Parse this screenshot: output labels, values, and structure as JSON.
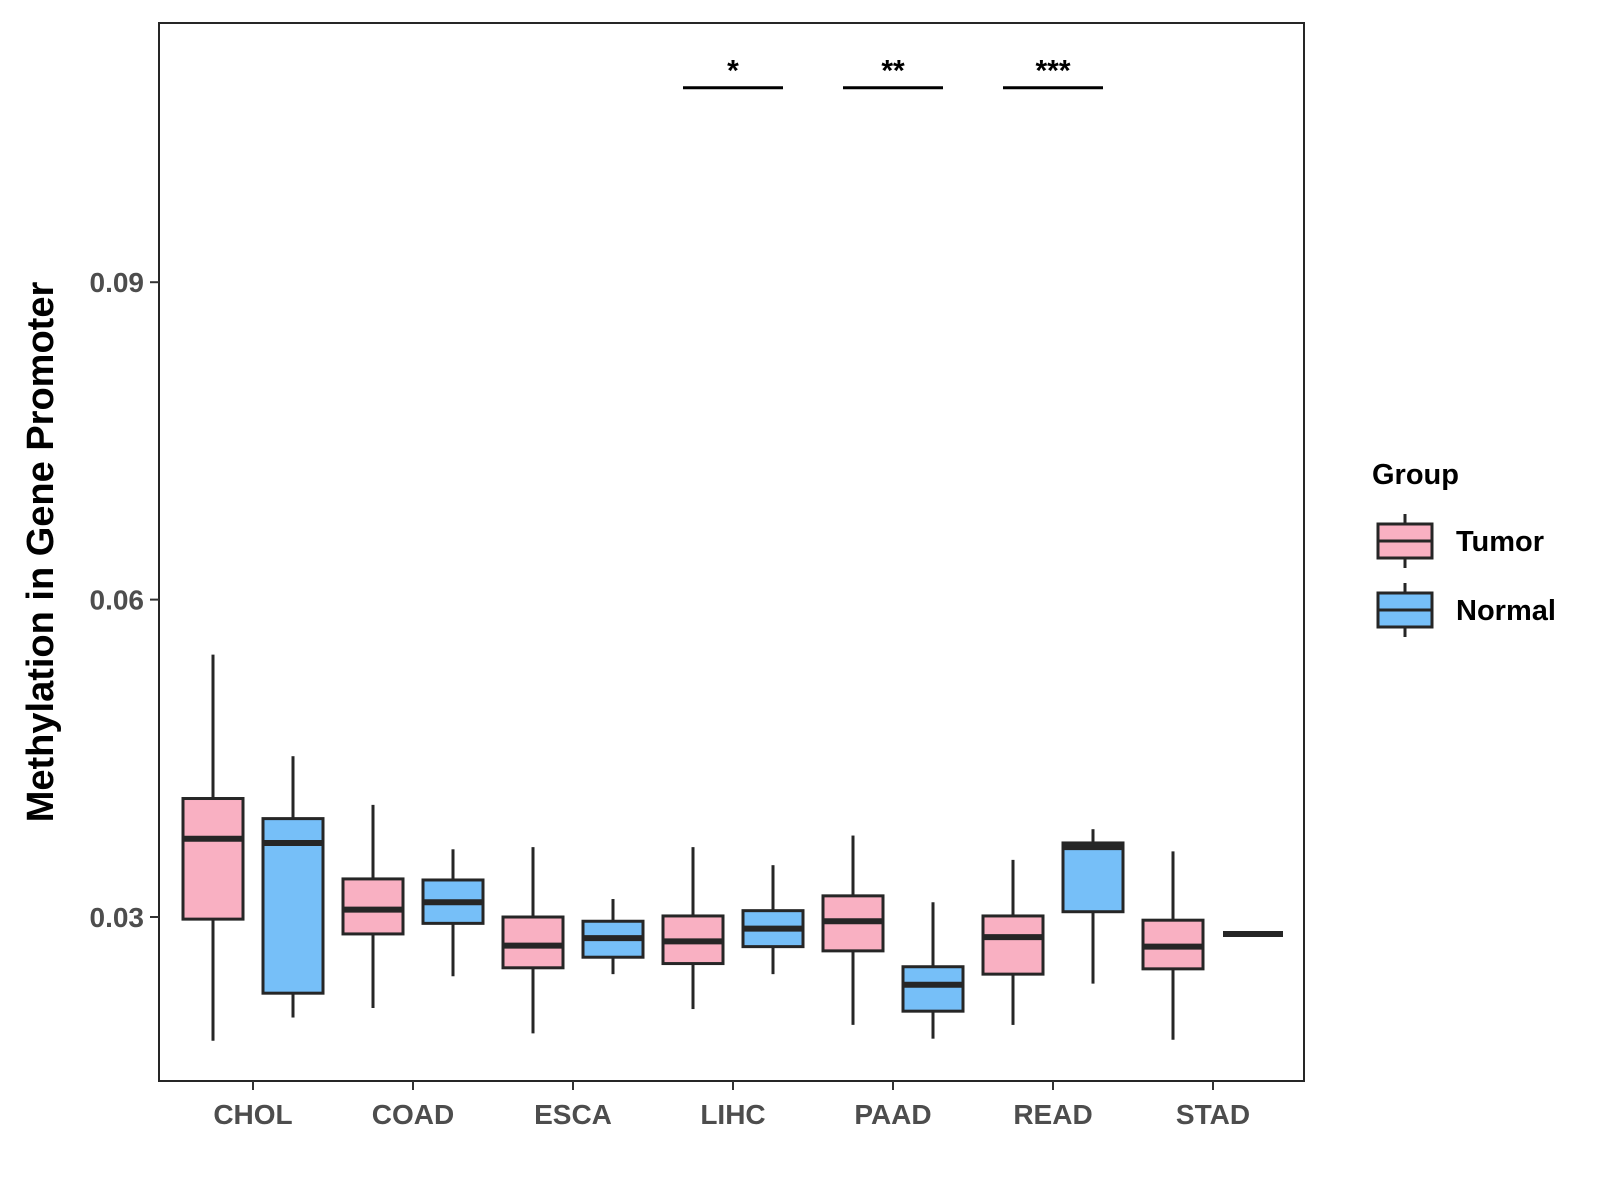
{
  "chart_data": {
    "type": "boxplot",
    "title": "",
    "xlabel": "",
    "ylabel": "Methylation in Gene Promoter",
    "ylim": [
      0.0145,
      0.1145
    ],
    "yticks": [
      0.03,
      0.06,
      0.09
    ],
    "ytick_labels": [
      "0.03",
      "0.06",
      "0.09"
    ],
    "categories": [
      "CHOL",
      "COAD",
      "ESCA",
      "LIHC",
      "PAAD",
      "READ",
      "STAD"
    ],
    "legend": {
      "title": "Group",
      "position": "right",
      "entries": [
        {
          "name": "Tumor",
          "color": "#F9B0C2"
        },
        {
          "name": "Normal",
          "color": "#76BFF8"
        }
      ]
    },
    "series": [
      {
        "name": "Tumor",
        "color": "#F9B0C2",
        "boxes": [
          {
            "category": "CHOL",
            "min": 0.0183,
            "q1": 0.0298,
            "median": 0.0374,
            "q3": 0.0412,
            "max": 0.0548
          },
          {
            "category": "COAD",
            "min": 0.0214,
            "q1": 0.0284,
            "median": 0.0307,
            "q3": 0.0336,
            "max": 0.0406
          },
          {
            "category": "ESCA",
            "min": 0.019,
            "q1": 0.0252,
            "median": 0.0273,
            "q3": 0.03,
            "max": 0.0366
          },
          {
            "category": "LIHC",
            "min": 0.0213,
            "q1": 0.0256,
            "median": 0.0277,
            "q3": 0.0301,
            "max": 0.0366
          },
          {
            "category": "PAAD",
            "min": 0.0198,
            "q1": 0.0268,
            "median": 0.0296,
            "q3": 0.032,
            "max": 0.0377
          },
          {
            "category": "READ",
            "min": 0.0198,
            "q1": 0.0246,
            "median": 0.0281,
            "q3": 0.0301,
            "max": 0.0354
          },
          {
            "category": "STAD",
            "min": 0.0184,
            "q1": 0.0251,
            "median": 0.0272,
            "q3": 0.0297,
            "max": 0.0362
          }
        ]
      },
      {
        "name": "Normal",
        "color": "#76BFF8",
        "boxes": [
          {
            "category": "CHOL",
            "min": 0.0205,
            "q1": 0.0228,
            "median": 0.037,
            "q3": 0.0393,
            "max": 0.0452
          },
          {
            "category": "COAD",
            "min": 0.0244,
            "q1": 0.0294,
            "median": 0.0314,
            "q3": 0.0335,
            "max": 0.0364
          },
          {
            "category": "ESCA",
            "min": 0.0246,
            "q1": 0.0262,
            "median": 0.028,
            "q3": 0.0296,
            "max": 0.0317
          },
          {
            "category": "LIHC",
            "min": 0.0246,
            "q1": 0.0272,
            "median": 0.0289,
            "q3": 0.0306,
            "max": 0.0349
          },
          {
            "category": "PAAD",
            "min": 0.0185,
            "q1": 0.0211,
            "median": 0.0236,
            "q3": 0.0253,
            "max": 0.0314
          },
          {
            "category": "READ",
            "min": 0.0237,
            "q1": 0.0305,
            "median": 0.0366,
            "q3": 0.037,
            "max": 0.0383
          },
          {
            "category": "STAD",
            "min": 0.0284,
            "q1": 0.0284,
            "median": 0.0284,
            "q3": 0.0284,
            "max": 0.0284
          }
        ]
      }
    ],
    "significance": [
      {
        "category": "LIHC",
        "label": "*",
        "y": 0.1098
      },
      {
        "category": "PAAD",
        "label": "**",
        "y": 0.1098
      },
      {
        "category": "READ",
        "label": "***",
        "y": 0.1098
      }
    ],
    "grid": false
  }
}
